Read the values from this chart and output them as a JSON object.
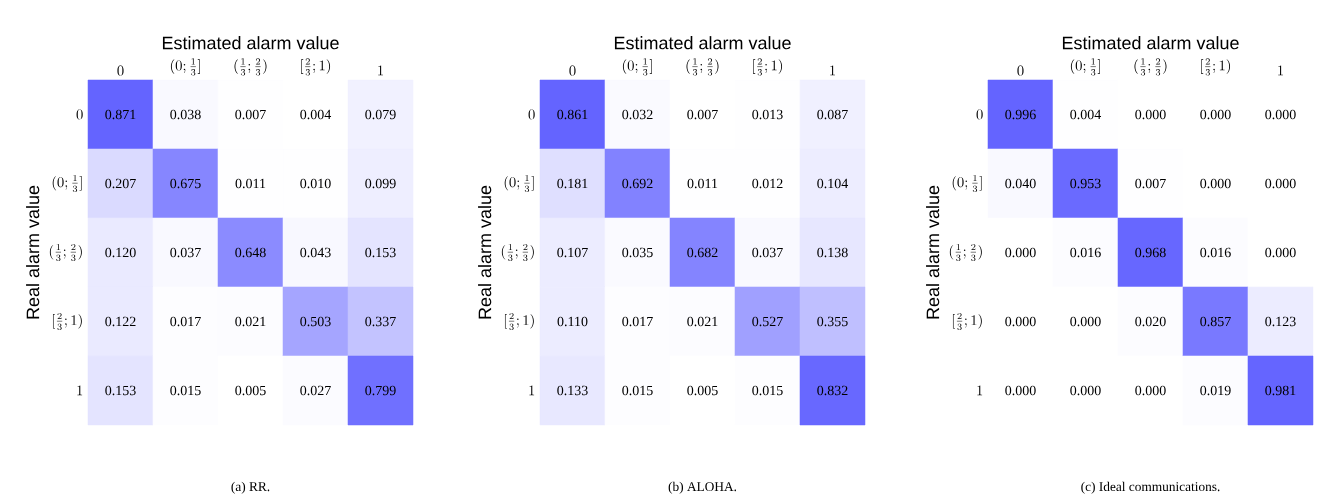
{
  "chart_data": [
    {
      "type": "heatmap",
      "xlabel": "Estimated alarm value",
      "ylabel": "Real alarm value",
      "categories": [
        "0",
        "(0;\\frac{1}{3}]",
        "(\\frac{1}{3};\\frac{2}{3})",
        "[\\frac{2}{3};1)",
        "1"
      ],
      "y_categories": [
        "0",
        "(0;\\frac{1}{3}]",
        "(\\frac{1}{3};\\frac{2}{3})",
        "[\\frac{2}{3};1)",
        "1"
      ],
      "cells": [
        [
          0.871,
          0.038,
          0.007,
          0.004,
          0.079
        ],
        [
          0.207,
          0.675,
          0.011,
          0.01,
          0.099
        ],
        [
          0.12,
          0.037,
          0.648,
          0.043,
          0.153
        ],
        [
          0.122,
          0.017,
          0.021,
          0.503,
          0.337
        ],
        [
          0.153,
          0.015,
          0.005,
          0.027,
          0.799
        ]
      ],
      "cell_labels": [
        [
          "0.871",
          "0.038",
          "0.007",
          "0.004",
          "0.079"
        ],
        [
          "0.207",
          "0.675",
          "0.011",
          "0.010",
          "0.099"
        ],
        [
          "0.120",
          "0.037",
          "0.648",
          "0.043",
          "0.153"
        ],
        [
          "0.122",
          "0.017",
          "0.021",
          "0.503",
          "0.337"
        ],
        [
          "0.153",
          "0.015",
          "0.005",
          "0.027",
          "0.799"
        ]
      ],
      "annotations": [
        "(a) RR."
      ]
    },
    {
      "type": "heatmap",
      "xlabel": "Estimated alarm value",
      "ylabel": "Real alarm value",
      "categories": [
        "0",
        "(0;\\frac{1}{3}]",
        "(\\frac{1}{3};\\frac{2}{3})",
        "[\\frac{2}{3};1)",
        "1"
      ],
      "y_categories": [
        "0",
        "(0;\\frac{1}{3}]",
        "(\\frac{1}{3};\\frac{2}{3})",
        "[\\frac{2}{3};1)",
        "1"
      ],
      "cells": [
        [
          0.861,
          0.032,
          0.007,
          0.013,
          0.087
        ],
        [
          0.181,
          0.692,
          0.011,
          0.012,
          0.104
        ],
        [
          0.107,
          0.035,
          0.682,
          0.037,
          0.138
        ],
        [
          0.11,
          0.017,
          0.021,
          0.527,
          0.355
        ],
        [
          0.133,
          0.015,
          0.005,
          0.015,
          0.832
        ]
      ],
      "cell_labels": [
        [
          "0.861",
          "0.032",
          "0.007",
          "0.013",
          "0.087"
        ],
        [
          "0.181",
          "0.692",
          "0.011",
          "0.012",
          "0.104"
        ],
        [
          "0.107",
          "0.035",
          "0.682",
          "0.037",
          "0.138"
        ],
        [
          "0.110",
          "0.017",
          "0.021",
          "0.527",
          "0.355"
        ],
        [
          "0.133",
          "0.015",
          "0.005",
          "0.015",
          "0.832"
        ]
      ],
      "annotations": [
        "(b) ALOHA."
      ]
    },
    {
      "type": "heatmap",
      "xlabel": "Estimated alarm value",
      "ylabel": "Real alarm value",
      "categories": [
        "0",
        "(0;\\frac{1}{3}]",
        "(\\frac{1}{3};\\frac{2}{3})",
        "[\\frac{2}{3};1)",
        "1"
      ],
      "y_categories": [
        "0",
        "(0;\\frac{1}{3}]",
        "(\\frac{1}{3};\\frac{2}{3})",
        "[\\frac{2}{3};1)",
        "1"
      ],
      "cells": [
        [
          0.996,
          0.004,
          0.0,
          0.0,
          0.0
        ],
        [
          0.04,
          0.953,
          0.007,
          0.0,
          0.0
        ],
        [
          0.0,
          0.016,
          0.968,
          0.016,
          0.0
        ],
        [
          0.0,
          0.0,
          0.02,
          0.857,
          0.123
        ],
        [
          0.0,
          0.0,
          0.0,
          0.019,
          0.981
        ]
      ],
      "cell_labels": [
        [
          "0.996",
          "0.004",
          "0.000",
          "0.000",
          "0.000"
        ],
        [
          "0.040",
          "0.953",
          "0.007",
          "0.000",
          "0.000"
        ],
        [
          "0.000",
          "0.016",
          "0.968",
          "0.016",
          "0.000"
        ],
        [
          "0.000",
          "0.000",
          "0.020",
          "0.857",
          "0.123"
        ],
        [
          "0.000",
          "0.000",
          "0.000",
          "0.019",
          "0.981"
        ]
      ],
      "annotations": [
        "(c) Ideal communications."
      ]
    }
  ]
}
